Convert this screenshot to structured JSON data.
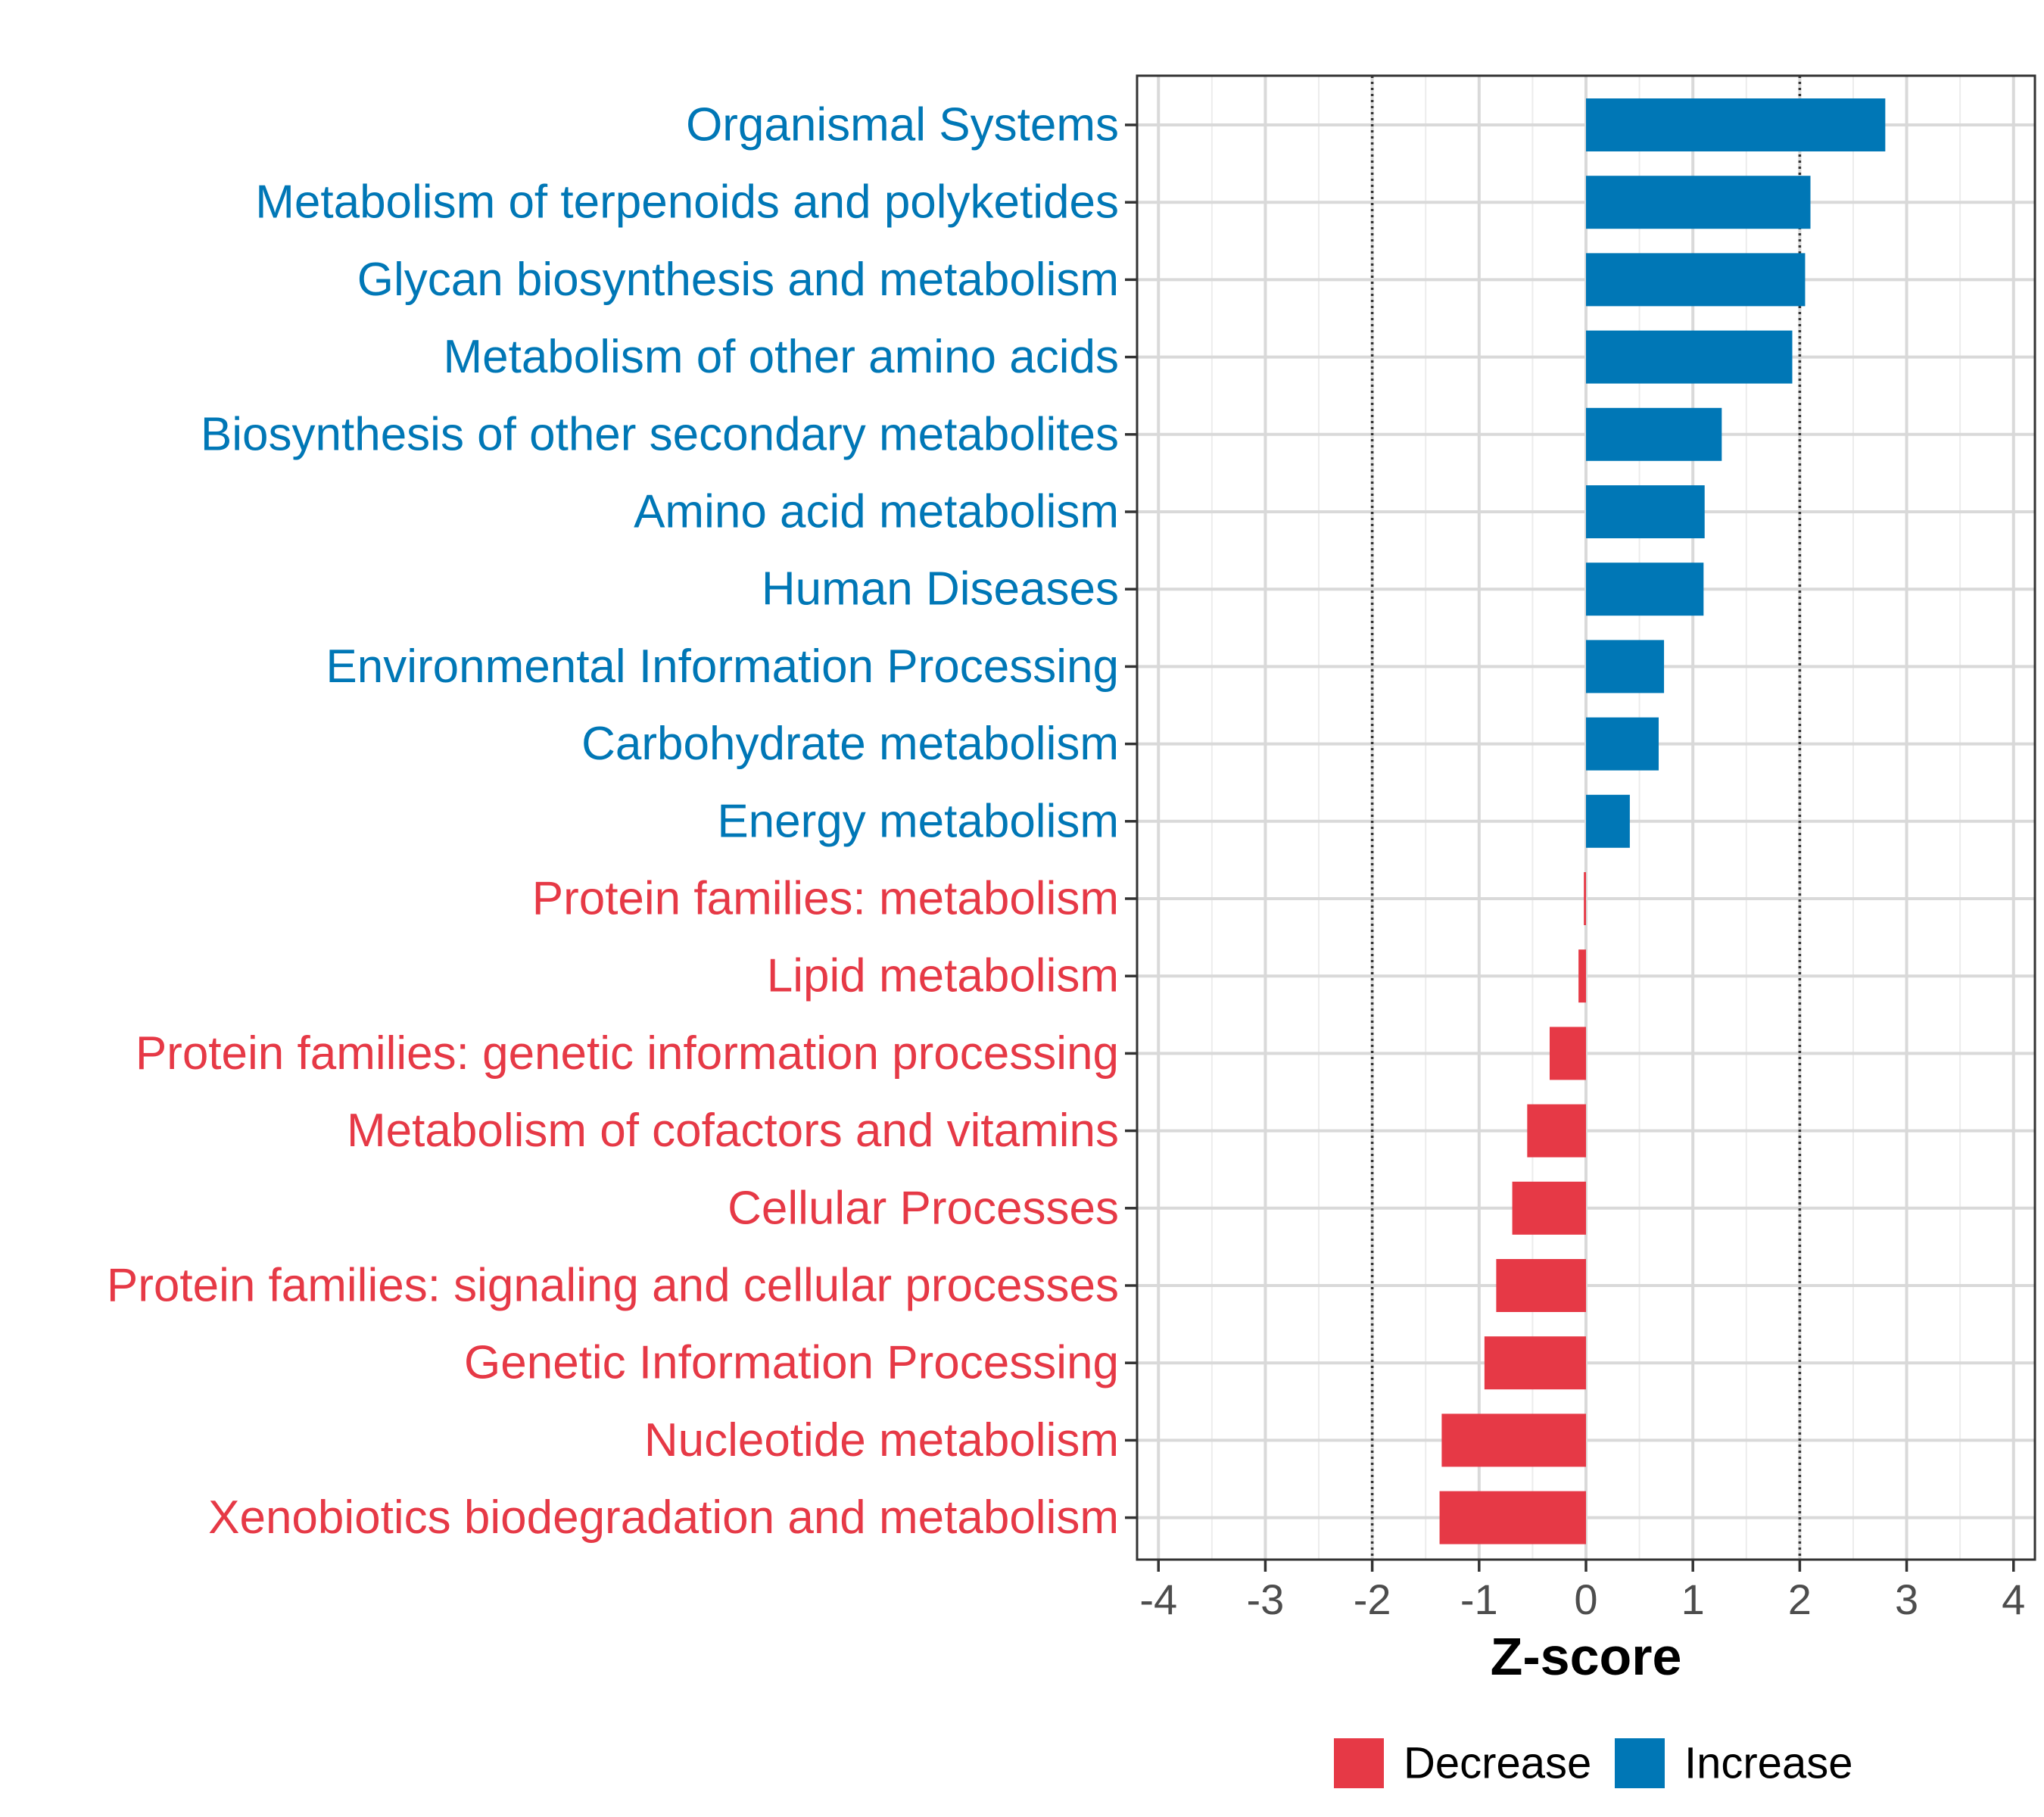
{
  "chart_data": {
    "type": "bar",
    "orientation": "horizontal",
    "xlabel": "Z-score",
    "ylabel": "",
    "xlim": [
      -4.2,
      4.2
    ],
    "xticks": [
      -4,
      -3,
      -2,
      -1,
      0,
      1,
      2,
      3,
      4
    ],
    "tick_labels": [
      "-4",
      "-3",
      "-2",
      "-1",
      "0",
      "1",
      "2",
      "3",
      "4"
    ],
    "reference_lines": [
      -2,
      2
    ],
    "grid": true,
    "legend_position": "bottom",
    "colors": {
      "Decrease": "#E63946",
      "Increase": "#0077B6"
    },
    "legend": [
      {
        "label": "Decrease",
        "color": "#E63946"
      },
      {
        "label": "Increase",
        "color": "#0077B6"
      }
    ],
    "categories": [
      "Organismal Systems",
      "Metabolism of terpenoids and polyketides",
      "Glycan biosynthesis and metabolism",
      "Metabolism of other amino acids",
      "Biosynthesis of other secondary metabolites",
      "Amino acid metabolism",
      "Human Diseases",
      "Environmental Information Processing",
      "Carbohydrate metabolism",
      "Energy metabolism",
      "Protein families: metabolism",
      "Lipid metabolism",
      "Protein families: genetic information processing",
      "Metabolism of cofactors and vitamins",
      "Cellular Processes",
      "Protein families: signaling and cellular processes",
      "Genetic Information Processing",
      "Nucleotide metabolism",
      "Xenobiotics biodegradation and metabolism"
    ],
    "values": [
      2.8,
      2.1,
      2.05,
      1.93,
      1.27,
      1.11,
      1.1,
      0.73,
      0.68,
      0.41,
      -0.02,
      -0.07,
      -0.34,
      -0.55,
      -0.69,
      -0.84,
      -0.95,
      -1.35,
      -1.37
    ],
    "groups": [
      "Increase",
      "Increase",
      "Increase",
      "Increase",
      "Increase",
      "Increase",
      "Increase",
      "Increase",
      "Increase",
      "Increase",
      "Decrease",
      "Decrease",
      "Decrease",
      "Decrease",
      "Decrease",
      "Decrease",
      "Decrease",
      "Decrease",
      "Decrease"
    ]
  }
}
